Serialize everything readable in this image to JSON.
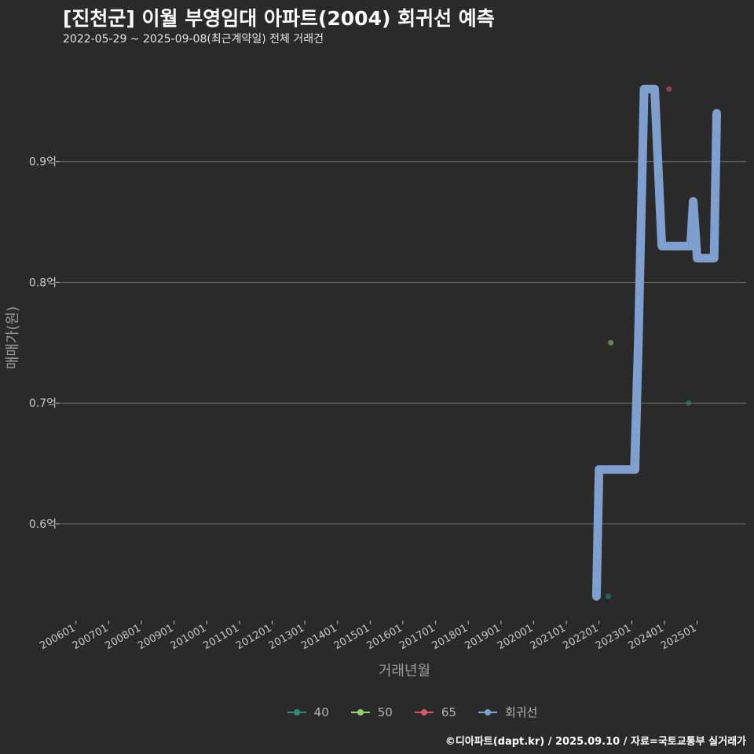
{
  "header": {
    "title": "[진천군] 이월 부영임대 아파트(2004) 회귀선 예측",
    "subtitle": "2022-05-29 ~ 2025-09-08(최근계약일) 전체 거래건"
  },
  "caption": "©디아파트(dapt.kr) / 2025.09.10 / 자료=국토교통부 실거래가",
  "colors": {
    "background": "#2b2a2b",
    "grid": "#6f6f6f",
    "series_40": "#2e8b7f",
    "series_50": "#8fd46f",
    "series_65": "#d9576a",
    "regression": "#7f9fcf"
  },
  "chart_data": {
    "type": "scatter",
    "title": "[진천군] 이월 부영임대 아파트(2004) 회귀선 예측",
    "xlabel": "거래년월",
    "ylabel": "매매가(원)",
    "ylim": [
      0.52,
      0.985
    ],
    "xlim": [
      2005.5,
      2026.5
    ],
    "x_ticks": [
      {
        "label": "200601",
        "x": 2006.0
      },
      {
        "label": "200701",
        "x": 2007.0
      },
      {
        "label": "200801",
        "x": 2008.0
      },
      {
        "label": "200901",
        "x": 2009.0
      },
      {
        "label": "201001",
        "x": 2010.0
      },
      {
        "label": "201101",
        "x": 2011.0
      },
      {
        "label": "201201",
        "x": 2012.0
      },
      {
        "label": "201301",
        "x": 2013.0
      },
      {
        "label": "201401",
        "x": 2014.0
      },
      {
        "label": "201501",
        "x": 2015.0
      },
      {
        "label": "201601",
        "x": 2016.0
      },
      {
        "label": "201701",
        "x": 2017.0
      },
      {
        "label": "201801",
        "x": 2018.0
      },
      {
        "label": "201901",
        "x": 2019.0
      },
      {
        "label": "202001",
        "x": 2020.0
      },
      {
        "label": "202101",
        "x": 2021.0
      },
      {
        "label": "202201",
        "x": 2022.0
      },
      {
        "label": "202301",
        "x": 2023.0
      },
      {
        "label": "202401",
        "x": 2024.0
      },
      {
        "label": "202501",
        "x": 2025.0
      }
    ],
    "y_ticks": [
      {
        "label": "0.6억",
        "y": 0.6
      },
      {
        "label": "0.7억",
        "y": 0.7
      },
      {
        "label": "0.8억",
        "y": 0.8
      },
      {
        "label": "0.9억",
        "y": 0.9
      }
    ],
    "grid": true,
    "legend": [
      "40",
      "50",
      "65",
      "회귀선"
    ],
    "series": [
      {
        "name": "40",
        "color_key": "series_40",
        "points": [
          {
            "x": 2022.28,
            "y": 0.54
          },
          {
            "x": 2024.74,
            "y": 0.7
          }
        ]
      },
      {
        "name": "50",
        "color_key": "series_50",
        "points": [
          {
            "x": 2022.36,
            "y": 0.75
          }
        ]
      },
      {
        "name": "65",
        "color_key": "series_65",
        "points": [
          {
            "x": 2024.14,
            "y": 0.96
          }
        ]
      },
      {
        "name": "회귀선",
        "color_key": "regression",
        "type": "line",
        "points": [
          {
            "x": 2021.92,
            "y": 0.54
          },
          {
            "x": 2022.0,
            "y": 0.645
          },
          {
            "x": 2023.1,
            "y": 0.645
          },
          {
            "x": 2023.2,
            "y": 0.75
          },
          {
            "x": 2023.08,
            "y": 0.645
          },
          {
            "x": 2023.2,
            "y": 0.75
          },
          {
            "x": 2023.38,
            "y": 0.96
          },
          {
            "x": 2023.7,
            "y": 0.96
          },
          {
            "x": 2023.92,
            "y": 0.83
          },
          {
            "x": 2024.8,
            "y": 0.83
          },
          {
            "x": 2024.88,
            "y": 0.867
          },
          {
            "x": 2025.0,
            "y": 0.82
          },
          {
            "x": 2025.52,
            "y": 0.82
          },
          {
            "x": 2025.6,
            "y": 0.94
          }
        ]
      }
    ]
  }
}
